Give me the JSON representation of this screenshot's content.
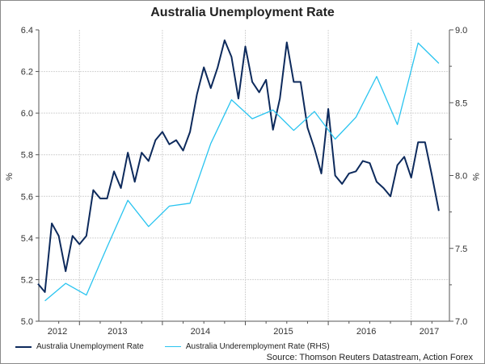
{
  "chart_data": {
    "type": "line",
    "title": "Australia Unemployment Rate",
    "ylabel": "%",
    "ylabel_right": "%",
    "ylim": [
      5.0,
      6.4
    ],
    "ylim_right": [
      7.0,
      9.0
    ],
    "yticks": [
      "6.4",
      "6.2",
      "6.0",
      "5.8",
      "5.6",
      "5.4",
      "5.2",
      "5.0"
    ],
    "yticks_right": [
      "9.0",
      "8.5",
      "8.0",
      "7.5",
      "7.0"
    ],
    "xticks": [
      "2012",
      "2013",
      "2014",
      "2015",
      "2016",
      "2017"
    ],
    "x_start": "2012-07",
    "x_frequency": "monthly",
    "grid": true,
    "legend_position": "bottom",
    "series": [
      {
        "name": "Australia Unemployment Rate",
        "axis": "left",
        "color": "#0d2a5c",
        "start_index": 0,
        "step": 1,
        "values": [
          5.18,
          5.14,
          5.47,
          5.41,
          5.24,
          5.41,
          5.37,
          5.41,
          5.63,
          5.59,
          5.59,
          5.72,
          5.64,
          5.81,
          5.67,
          5.81,
          5.77,
          5.87,
          5.91,
          5.85,
          5.87,
          5.82,
          5.91,
          6.09,
          6.22,
          6.12,
          6.22,
          6.35,
          6.27,
          6.07,
          6.32,
          6.15,
          6.1,
          6.16,
          5.92,
          6.07,
          6.34,
          6.15,
          6.15,
          5.93,
          5.83,
          5.71,
          6.02,
          5.7,
          5.66,
          5.71,
          5.72,
          5.77,
          5.76,
          5.67,
          5.64,
          5.6,
          5.75,
          5.79,
          5.69,
          5.86,
          5.86,
          5.7,
          5.53
        ]
      },
      {
        "name": "Australia Underemployment Rate (RHS)",
        "axis": "right",
        "color": "#29c4f0",
        "start_index": 1,
        "step": 3,
        "values": [
          7.14,
          7.26,
          7.18,
          7.51,
          7.83,
          7.65,
          7.79,
          7.81,
          8.22,
          8.52,
          8.39,
          8.45,
          8.31,
          8.44,
          8.25,
          8.4,
          8.68,
          8.35,
          8.91,
          8.77
        ]
      }
    ]
  },
  "source": "Source: Thomson Reuters Datastream, Action Forex"
}
